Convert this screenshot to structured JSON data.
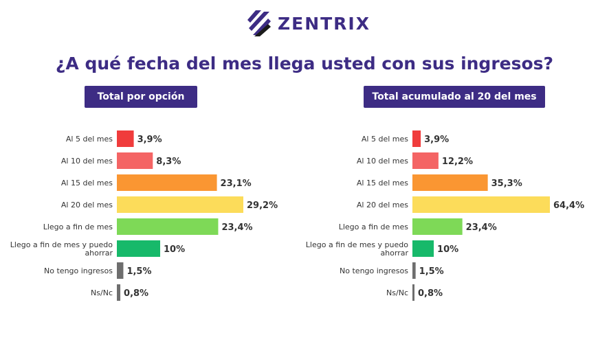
{
  "brand": {
    "name": "ZENTRIX",
    "color": "#3d2c84"
  },
  "title": "¿A qué fecha del mes llega usted con sus ingresos?",
  "colors": {
    "red": "#f03c3c",
    "salmon": "#f46464",
    "orange": "#fa9632",
    "yellow": "#fcdc5a",
    "light_green": "#7ed957",
    "green": "#17b96a",
    "gray": "#6e6e6e"
  },
  "chart_data": [
    {
      "type": "bar",
      "orientation": "horizontal",
      "title": "Total por opción",
      "categories": [
        "Al 5 del mes",
        "Al 10 del mes",
        "Al 15 del mes",
        "Al 20 del mes",
        "Llego a fin de mes",
        "Llego a fin de mes y puedo ahorrar",
        "No tengo ingresos",
        "Ns/Nc"
      ],
      "values": [
        3.9,
        8.3,
        23.1,
        29.2,
        23.4,
        10,
        1.5,
        0.8
      ],
      "value_labels": [
        "3,9%",
        "8,3%",
        "23,1%",
        "29,2%",
        "23,4%",
        "10%",
        "1,5%",
        "0,8%"
      ],
      "bar_colors": [
        "#f03c3c",
        "#f46464",
        "#fa9632",
        "#fcdc5a",
        "#7ed957",
        "#17b96a",
        "#6e6e6e",
        "#6e6e6e"
      ],
      "xlim": [
        0,
        29.2
      ],
      "grid": false,
      "legend": "none"
    },
    {
      "type": "bar",
      "orientation": "horizontal",
      "title": "Total acumulado al 20 del mes",
      "categories": [
        "Al 5 del mes",
        "Al 10 del mes",
        "Al 15 del mes",
        "Al 20 del mes",
        "Llego a fin de mes",
        "Llego a fin de mes y puedo ahorrar",
        "No tengo ingresos",
        "Ns/Nc"
      ],
      "values": [
        3.9,
        12.2,
        35.3,
        64.4,
        23.4,
        10,
        1.5,
        0.8
      ],
      "value_labels": [
        "3,9%",
        "12,2%",
        "35,3%",
        "64,4%",
        "23,4%",
        "10%",
        "1,5%",
        "0,8%"
      ],
      "bar_colors": [
        "#f03c3c",
        "#f46464",
        "#fa9632",
        "#fcdc5a",
        "#7ed957",
        "#17b96a",
        "#6e6e6e",
        "#6e6e6e"
      ],
      "xlim": [
        0,
        64.4
      ],
      "grid": false,
      "legend": "none"
    }
  ]
}
